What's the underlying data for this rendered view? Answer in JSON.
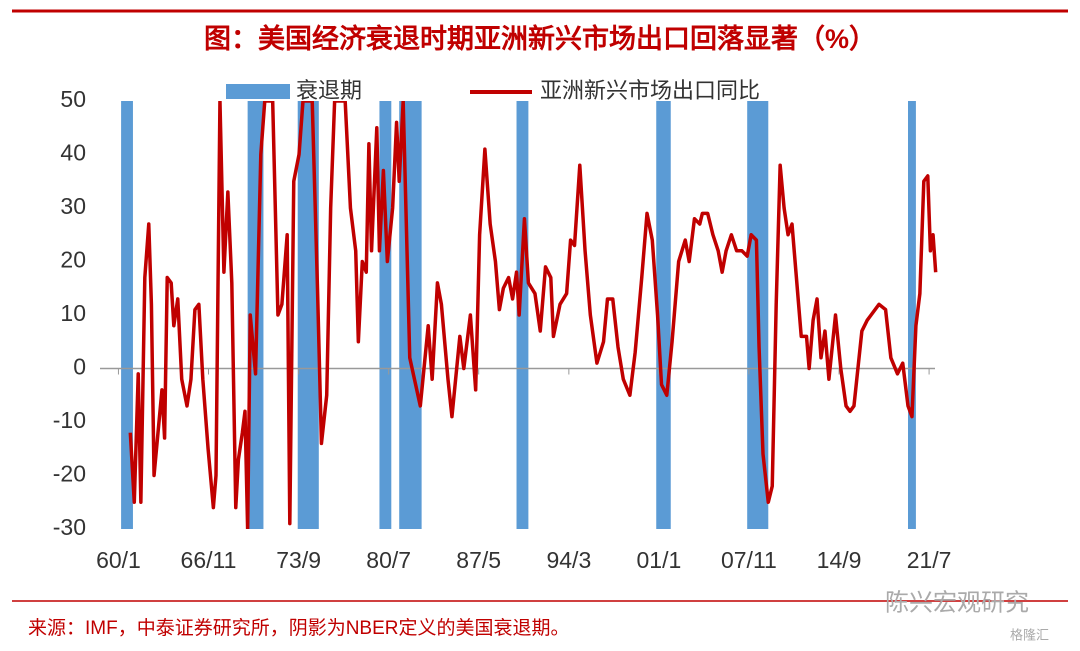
{
  "chart_data": {
    "type": "line",
    "title": "图：美国经济衰退时期亚洲新兴市场出口回落显著（%）",
    "source": "来源：IMF，中泰证券研究所，阴影为NBER定义的美国衰退期。",
    "watermarks": [
      "陈兴宏观研究",
      "格隆汇"
    ],
    "recessions": {
      "name": "衰退期",
      "color": "#5b9bd5",
      "periods": [
        [
          1960.2,
          1961.1
        ],
        [
          1969.8,
          1971.0
        ],
        [
          1973.6,
          1975.2
        ],
        [
          1979.8,
          1980.7
        ],
        [
          1981.3,
          1983.0
        ],
        [
          1990.2,
          1991.1
        ],
        [
          2000.8,
          2001.9
        ],
        [
          2007.7,
          2009.3
        ],
        [
          2019.9,
          2020.5
        ]
      ]
    },
    "x": [
      1960.9,
      1961.2,
      1961.5,
      1961.7,
      1962.0,
      1962.3,
      1962.5,
      1962.7,
      1963.0,
      1963.3,
      1963.5,
      1963.7,
      1964.0,
      1964.2,
      1964.5,
      1964.8,
      1965.2,
      1965.5,
      1965.8,
      1966.1,
      1966.4,
      1966.8,
      1967.2,
      1967.4,
      1967.7,
      1968.0,
      1968.3,
      1968.6,
      1968.9,
      1969.1,
      1969.4,
      1969.6,
      1969.8,
      1970.0,
      1970.4,
      1970.8,
      1971.1,
      1971.7,
      1972.1,
      1972.4,
      1972.8,
      1973.0,
      1973.3,
      1973.7,
      1974.0,
      1974.7,
      1975.1,
      1975.4,
      1975.8,
      1976.1,
      1976.4,
      1977.2,
      1977.6,
      1978.0,
      1978.2,
      1978.5,
      1978.8,
      1979.0,
      1979.2,
      1979.6,
      1979.8,
      1980.1,
      1980.4,
      1980.8,
      1981.1,
      1981.3,
      1981.6,
      1982.1,
      1982.9,
      1983.5,
      1983.8,
      1984.2,
      1984.5,
      1985.0,
      1985.3,
      1985.9,
      1986.2,
      1986.7,
      1987.1,
      1987.4,
      1987.8,
      1988.2,
      1988.6,
      1988.9,
      1989.2,
      1989.6,
      1989.9,
      1990.2,
      1990.4,
      1990.8,
      1991.1,
      1991.6,
      1992.0,
      1992.4,
      1992.8,
      1993.0,
      1993.5,
      1994.0,
      1994.3,
      1994.6,
      1995.0,
      1995.4,
      1995.8,
      1996.3,
      1996.8,
      1997.1,
      1997.5,
      1997.9,
      1998.3,
      1998.8,
      1999.2,
      1999.7,
      2000.1,
      2000.5,
      2000.9,
      2001.2,
      2001.6,
      2002.0,
      2002.5,
      2003.0,
      2003.3,
      2003.7,
      2004.1,
      2004.3,
      2004.7,
      2005.1,
      2005.5,
      2005.8,
      2006.1,
      2006.5,
      2006.9,
      2007.3,
      2007.7,
      2008.0,
      2008.4,
      2008.6,
      2008.9,
      2009.3,
      2009.6,
      2009.9,
      2010.2,
      2010.5,
      2010.8,
      2011.1,
      2011.4,
      2011.8,
      2012.2,
      2012.4,
      2012.7,
      2013.0,
      2013.3,
      2013.6,
      2013.9,
      2014.4,
      2014.8,
      2015.2,
      2015.5,
      2015.8,
      2016.4,
      2016.8,
      2017.1,
      2017.7,
      2018.2,
      2018.6,
      2019.1,
      2019.5,
      2019.9,
      2020.2,
      2020.5,
      2020.8,
      2021.1,
      2021.4,
      2021.6,
      2021.8,
      2022.0
    ],
    "series": [
      {
        "name": "亚洲新兴市场出口同比",
        "color": "#c00000",
        "values": [
          -12,
          -25,
          -1,
          -25,
          17,
          27,
          12,
          -20,
          -12,
          -4,
          -13,
          17,
          16,
          8,
          13,
          -2,
          -7,
          -2,
          11,
          12,
          -2,
          -15,
          -26,
          -20,
          50,
          18,
          33,
          16,
          -26,
          -17,
          -12,
          -8,
          -30,
          10,
          -1,
          40,
          50,
          50,
          10,
          12,
          25,
          -29,
          35,
          40,
          50,
          50,
          15,
          -14,
          -5,
          30,
          50,
          50,
          30,
          22,
          5,
          20,
          18,
          42,
          22,
          45,
          22,
          37,
          20,
          30,
          46,
          35,
          50,
          2,
          -7,
          8,
          -2,
          16,
          12,
          -2,
          -9,
          6,
          0,
          10,
          -4,
          25,
          41,
          27,
          20,
          11,
          15,
          17,
          13,
          18,
          10,
          28,
          16,
          14,
          7,
          19,
          17,
          6,
          12,
          14,
          24,
          23,
          38,
          22,
          10,
          1,
          5,
          13,
          13,
          4,
          -2,
          -5,
          3,
          17,
          29,
          24,
          10,
          -3,
          -5,
          5,
          20,
          24,
          20,
          28,
          27,
          29,
          29,
          25,
          22,
          18,
          22,
          25,
          22,
          22,
          21,
          25,
          24,
          4,
          -16,
          -25,
          -22,
          12,
          38,
          30,
          25,
          27,
          18,
          6,
          6,
          0,
          9,
          13,
          2,
          7,
          -2,
          10,
          0,
          -7,
          -8,
          -7,
          7,
          9,
          10,
          12,
          11,
          2,
          -1,
          1,
          -7,
          -9,
          8,
          14,
          35,
          36,
          22,
          25,
          18
        ]
      }
    ],
    "xlim": [
      1958.6,
      2022.1
    ],
    "xticks": [
      {
        "value": 1960.0,
        "label": "60/1"
      },
      {
        "value": 1966.83,
        "label": "66/11"
      },
      {
        "value": 1973.67,
        "label": "73/9"
      },
      {
        "value": 1980.5,
        "label": "80/7"
      },
      {
        "value": 1987.33,
        "label": "87/5"
      },
      {
        "value": 1994.17,
        "label": "94/3"
      },
      {
        "value": 2001.0,
        "label": "01/1"
      },
      {
        "value": 2007.83,
        "label": "07/11"
      },
      {
        "value": 2014.67,
        "label": "14/9"
      },
      {
        "value": 2021.5,
        "label": "21/7"
      }
    ],
    "ylim": [
      -30,
      50
    ],
    "yticks": [
      -30,
      -20,
      -10,
      0,
      10,
      20,
      30,
      40,
      50
    ]
  }
}
